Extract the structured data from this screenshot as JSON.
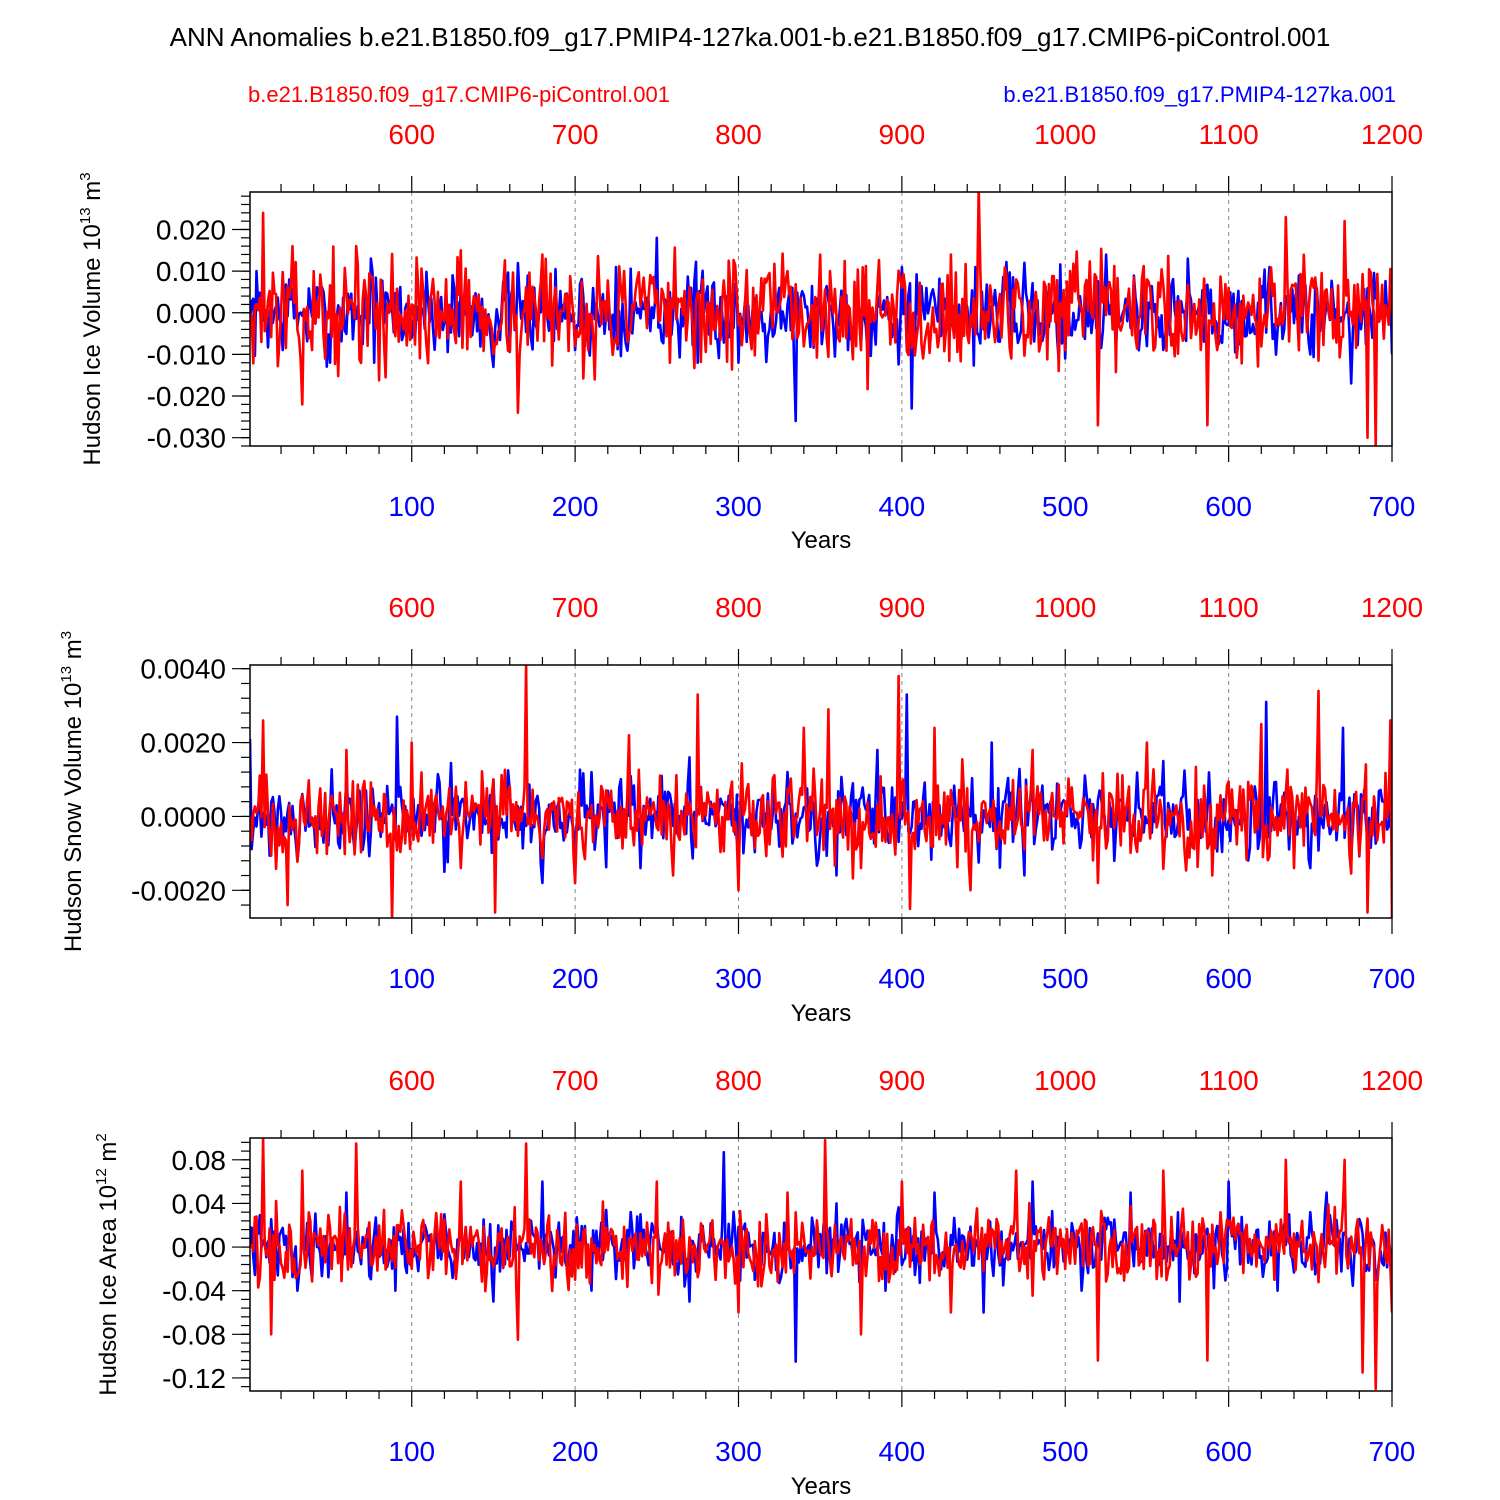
{
  "title": "ANN Anomalies b.e21.B1850.f09_g17.PMIP4-127ka.001-b.e21.B1850.f09_g17.CMIP6-piControl.001",
  "legend": {
    "control": "b.e21.B1850.f09_g17.CMIP6-piControl.001",
    "experiment": "b.e21.B1850.f09_g17.PMIP4-127ka.001"
  },
  "colors": {
    "control": "#ff0000",
    "experiment": "#0000ff",
    "axis": "#000000"
  },
  "chart_data": [
    {
      "type": "line",
      "id": "ice-volume",
      "ylabel_main": "Hudson Ice Volume 10",
      "ylabel_exp": "13",
      "ylabel_unit": " m",
      "ylabel_unit_exp": "3",
      "xlabel": "Years",
      "ylim": [
        -0.032,
        0.029
      ],
      "yticks": [
        0.02,
        0.01,
        0.0,
        -0.01,
        -0.02,
        -0.03
      ],
      "ytick_labels": [
        "0.020",
        "0.010",
        "0.000",
        "-0.010",
        "-0.020",
        "-0.030"
      ],
      "bottom_axis": {
        "range": [
          1,
          700
        ],
        "ticks": [
          100,
          200,
          300,
          400,
          500,
          600,
          700
        ],
        "labels": [
          "100",
          "200",
          "300",
          "400",
          "500",
          "600",
          "700"
        ]
      },
      "top_axis": {
        "range": [
          501,
          1200
        ],
        "ticks": [
          600,
          700,
          800,
          900,
          1000,
          1100,
          1200
        ],
        "labels": [
          "600",
          "700",
          "800",
          "900",
          "1000",
          "1100",
          "1200"
        ]
      },
      "series": [
        {
          "name": "b.e21.B1850.f09_g17.PMIP4-127ka.001",
          "color": "#0000ff",
          "x_axis": "bottom",
          "x": [
            1,
            25,
            50,
            75,
            100,
            125,
            150,
            175,
            200,
            225,
            250,
            275,
            300,
            325,
            335,
            350,
            375,
            400,
            406,
            425,
            450,
            475,
            500,
            525,
            550,
            575,
            600,
            625,
            650,
            675,
            700
          ],
          "values": [
            -0.002,
            0.008,
            -0.012,
            0.013,
            -0.006,
            0.009,
            -0.013,
            0.006,
            -0.009,
            0.011,
            0.018,
            -0.012,
            -0.012,
            0.006,
            -0.026,
            0.004,
            -0.008,
            0.011,
            -0.023,
            0.006,
            -0.004,
            0.012,
            -0.011,
            0.014,
            -0.008,
            0.013,
            -0.003,
            0.011,
            -0.01,
            -0.017,
            -0.01
          ],
          "amplitude": 0.008,
          "seed": 7
        },
        {
          "name": "b.e21.B1850.f09_g17.CMIP6-piControl.001",
          "color": "#ff0000",
          "x_axis": "bottom",
          "x": [
            1,
            9,
            33,
            66,
            100,
            130,
            165,
            180,
            200,
            230,
            258,
            300,
            330,
            350,
            375,
            400,
            430,
            447,
            470,
            500,
            520,
            550,
            587,
            600,
            635,
            650,
            671,
            685,
            690,
            700
          ],
          "values": [
            0.0,
            0.024,
            -0.022,
            0.016,
            0.002,
            0.015,
            -0.024,
            0.014,
            -0.008,
            0.01,
            -0.012,
            -0.003,
            0.01,
            0.014,
            -0.009,
            0.006,
            0.014,
            0.03,
            0.008,
            -0.009,
            -0.027,
            0.008,
            -0.027,
            0.006,
            0.023,
            0.006,
            0.022,
            -0.03,
            -0.032,
            0.0
          ],
          "amplitude": 0.01,
          "seed": 13
        }
      ]
    },
    {
      "type": "line",
      "id": "snow-volume",
      "ylabel_main": "Hudson Snow Volume 10",
      "ylabel_exp": "13",
      "ylabel_unit": " m",
      "ylabel_unit_exp": "3",
      "xlabel": "Years",
      "ylim": [
        -0.00275,
        0.0041
      ],
      "yticks": [
        0.004,
        0.002,
        0.0,
        -0.002
      ],
      "ytick_labels": [
        "0.0040",
        "0.0020",
        "0.0000",
        "-0.0020"
      ],
      "bottom_axis": {
        "range": [
          1,
          700
        ],
        "ticks": [
          100,
          200,
          300,
          400,
          500,
          600,
          700
        ],
        "labels": [
          "100",
          "200",
          "300",
          "400",
          "500",
          "600",
          "700"
        ]
      },
      "top_axis": {
        "range": [
          501,
          1200
        ],
        "ticks": [
          600,
          700,
          800,
          900,
          1000,
          1100,
          1200
        ],
        "labels": [
          "600",
          "700",
          "800",
          "900",
          "1000",
          "1100",
          "1200"
        ]
      },
      "series": [
        {
          "name": "b.e21.B1850.f09_g17.PMIP4-127ka.001",
          "color": "#0000ff",
          "x_axis": "bottom",
          "x": [
            1,
            30,
            60,
            91,
            120,
            150,
            180,
            210,
            240,
            270,
            300,
            330,
            360,
            385,
            403,
            430,
            455,
            475,
            500,
            530,
            560,
            590,
            623,
            650,
            670,
            700
          ],
          "values": [
            0.0021,
            -0.0012,
            0.001,
            0.0027,
            -0.0015,
            0.001,
            -0.0018,
            0.0012,
            -0.0014,
            0.0016,
            -0.0015,
            0.0012,
            -0.0016,
            0.0018,
            0.0033,
            -0.0008,
            0.002,
            -0.0016,
            0.0004,
            -0.0012,
            0.0015,
            -0.001,
            0.0031,
            -0.0014,
            0.0024,
            -0.001
          ],
          "amplitude": 0.0008,
          "seed": 21
        },
        {
          "name": "b.e21.B1850.f09_g17.CMIP6-piControl.001",
          "color": "#ff0000",
          "x_axis": "bottom",
          "x": [
            1,
            9,
            24,
            60,
            88,
            100,
            130,
            151,
            170,
            200,
            233,
            260,
            275,
            300,
            340,
            355,
            375,
            398,
            405,
            420,
            442,
            480,
            500,
            520,
            550,
            590,
            620,
            640,
            655,
            685,
            699,
            700
          ],
          "values": [
            0.0,
            0.0026,
            -0.0024,
            0.0018,
            -0.0028,
            0.002,
            -0.0014,
            -0.0026,
            0.0041,
            -0.0018,
            0.0022,
            -0.0016,
            0.0033,
            -0.002,
            0.0024,
            0.0029,
            -0.0014,
            0.0038,
            -0.0025,
            0.0024,
            -0.002,
            0.0018,
            0.0004,
            -0.0018,
            0.002,
            -0.0016,
            0.0025,
            -0.0014,
            0.0034,
            -0.0026,
            0.0026,
            -0.0028
          ],
          "amplitude": 0.0009,
          "seed": 33
        }
      ]
    },
    {
      "type": "line",
      "id": "ice-area",
      "ylabel_main": "Hudson Ice Area 10",
      "ylabel_exp": "12",
      "ylabel_unit": " m",
      "ylabel_unit_exp": "2",
      "xlabel": "Years",
      "ylim": [
        -0.132,
        0.1
      ],
      "yticks": [
        0.08,
        0.04,
        0.0,
        -0.04,
        -0.08,
        -0.12
      ],
      "ytick_labels": [
        "0.08",
        "0.04",
        "0.00",
        "-0.04",
        "-0.08",
        "-0.12"
      ],
      "bottom_axis": {
        "range": [
          1,
          700
        ],
        "ticks": [
          100,
          200,
          300,
          400,
          500,
          600,
          700
        ],
        "labels": [
          "100",
          "200",
          "300",
          "400",
          "500",
          "600",
          "700"
        ]
      },
      "top_axis": {
        "range": [
          501,
          1200
        ],
        "ticks": [
          600,
          700,
          800,
          900,
          1000,
          1100,
          1200
        ],
        "labels": [
          "600",
          "700",
          "800",
          "900",
          "1000",
          "1100",
          "1200"
        ]
      },
      "series": [
        {
          "name": "b.e21.B1850.f09_g17.PMIP4-127ka.001",
          "color": "#0000ff",
          "x_axis": "bottom",
          "x": [
            1,
            30,
            60,
            90,
            120,
            150,
            180,
            210,
            240,
            270,
            291,
            310,
            335,
            360,
            390,
            420,
            450,
            480,
            510,
            540,
            570,
            600,
            630,
            660,
            690,
            700
          ],
          "values": [
            0.0,
            -0.04,
            0.05,
            -0.04,
            0.03,
            -0.05,
            0.06,
            -0.04,
            0.03,
            -0.05,
            0.087,
            -0.03,
            -0.105,
            0.04,
            -0.04,
            0.05,
            -0.06,
            0.06,
            -0.04,
            0.05,
            -0.05,
            0.06,
            -0.04,
            0.05,
            -0.03,
            -0.02
          ],
          "amplitude": 0.022,
          "seed": 41
        },
        {
          "name": "b.e21.B1850.f09_g17.CMIP6-piControl.001",
          "color": "#ff0000",
          "x_axis": "bottom",
          "x": [
            1,
            9,
            14,
            33,
            66,
            100,
            130,
            165,
            170,
            200,
            250,
            300,
            330,
            353,
            375,
            400,
            430,
            470,
            500,
            520,
            560,
            587,
            600,
            635,
            671,
            682,
            690,
            700
          ],
          "values": [
            0.0,
            0.1,
            -0.08,
            0.07,
            0.095,
            -0.02,
            0.06,
            -0.085,
            0.095,
            -0.03,
            0.06,
            -0.06,
            0.05,
            0.098,
            -0.08,
            0.06,
            -0.06,
            0.07,
            -0.02,
            -0.104,
            0.07,
            -0.104,
            0.02,
            0.08,
            0.08,
            -0.115,
            -0.13,
            -0.06
          ],
          "amplitude": 0.028,
          "seed": 57
        }
      ]
    }
  ]
}
